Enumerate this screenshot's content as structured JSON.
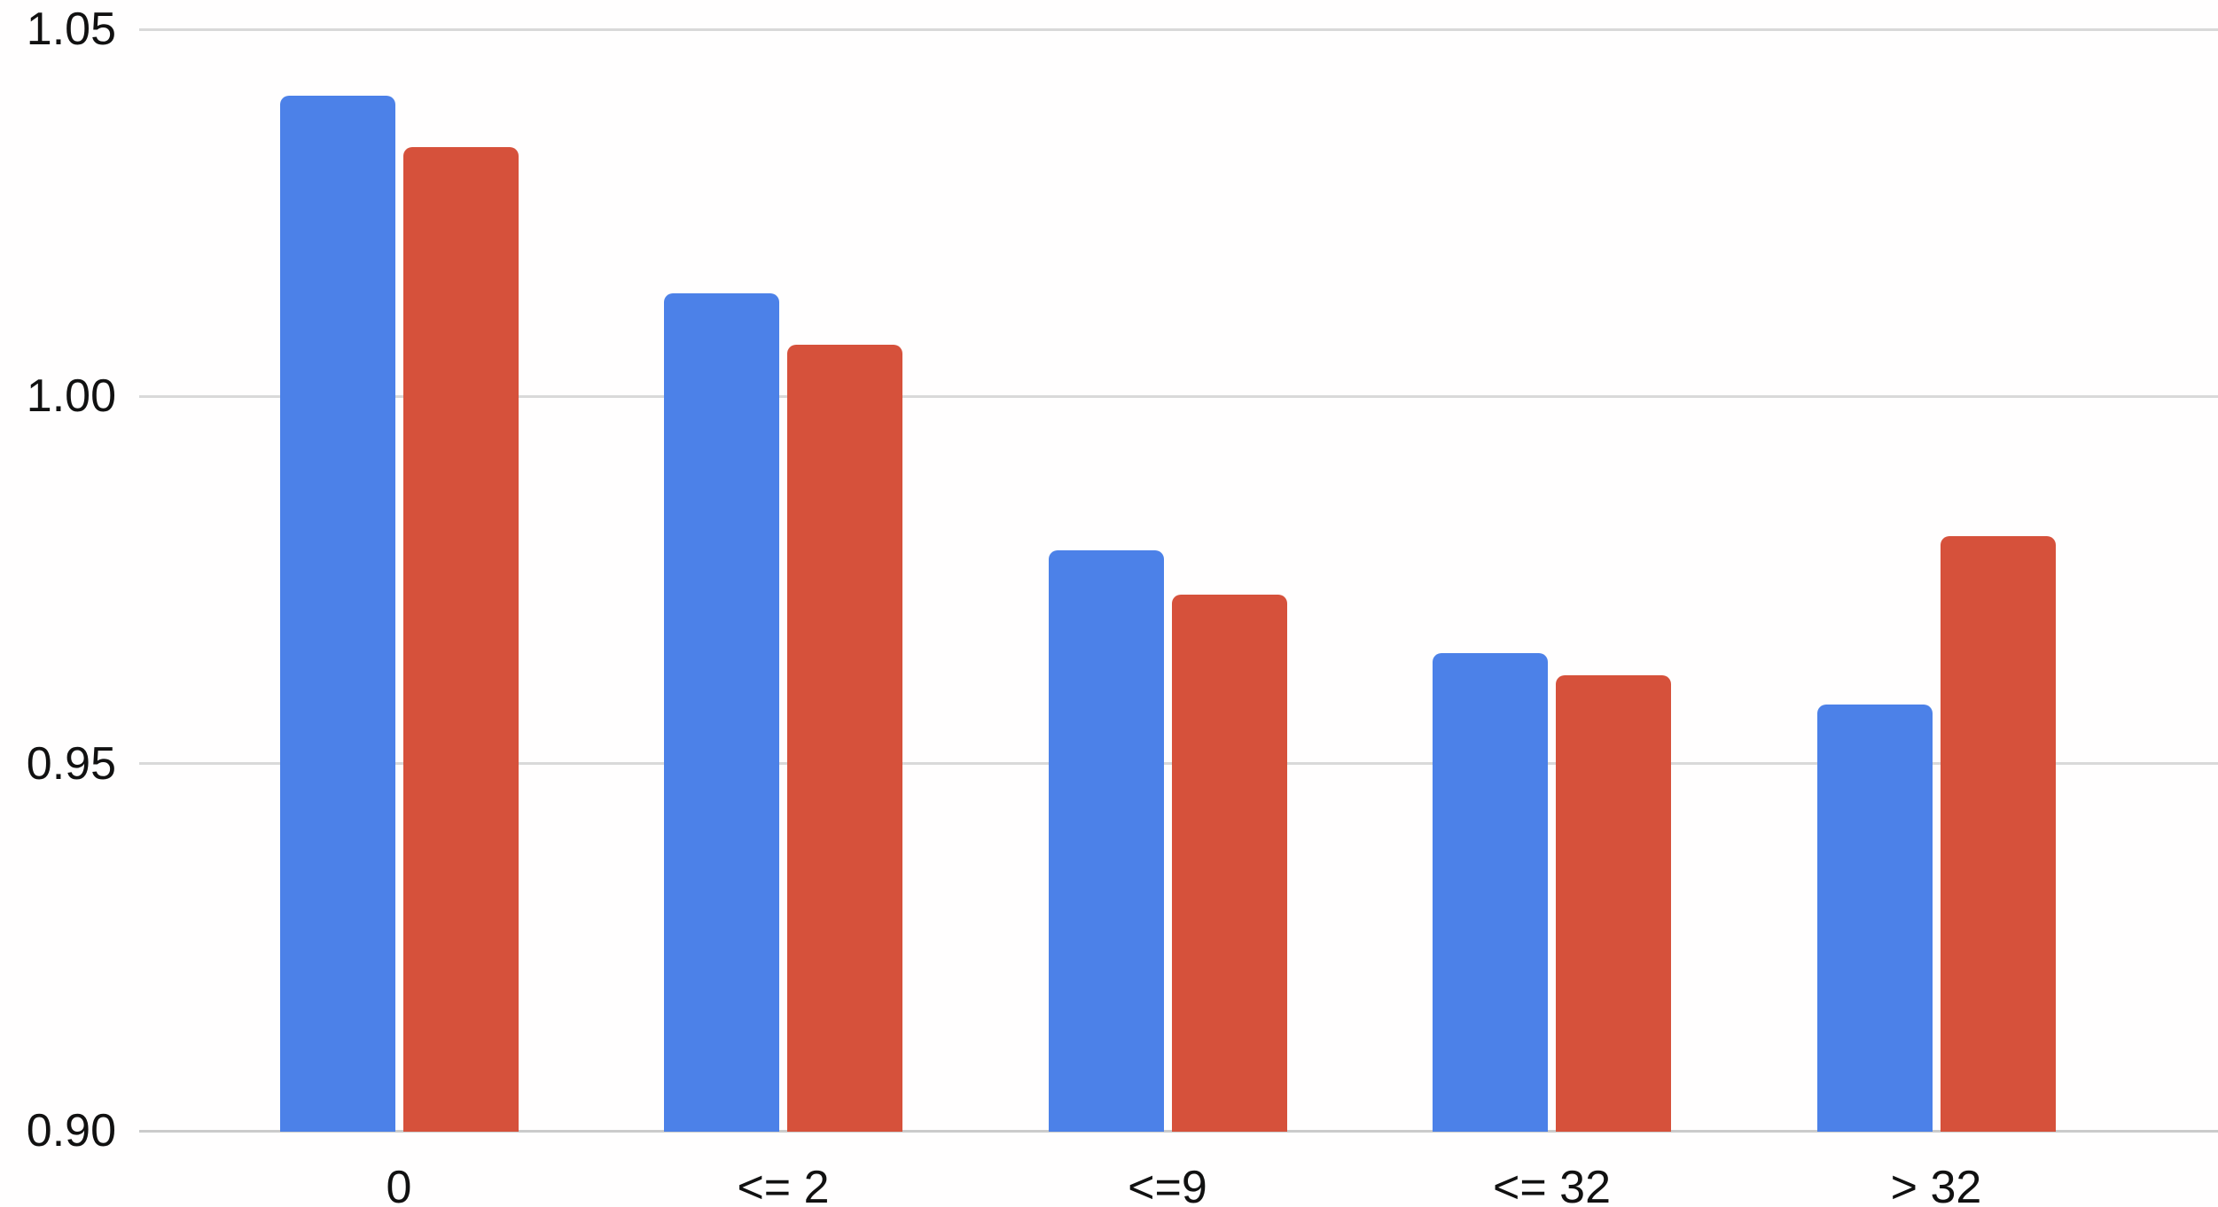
{
  "chart_data": {
    "type": "bar",
    "title": "",
    "xlabel": "",
    "ylabel": "",
    "categories": [
      "0",
      "<= 2",
      "<=9",
      "<= 32",
      "> 32"
    ],
    "series": [
      {
        "name": "series-blue",
        "color": "#4C81E8",
        "values": [
          1.041,
          1.014,
          0.979,
          0.965,
          0.958
        ]
      },
      {
        "name": "series-red",
        "color": "#D6513B",
        "values": [
          1.034,
          1.007,
          0.973,
          0.962,
          0.981
        ]
      }
    ],
    "ylim": [
      0.9,
      1.05
    ],
    "yticks": [
      1.05,
      1.0,
      0.95,
      0.9
    ],
    "ytick_decimals": 2,
    "grid": true,
    "legend_position": "none",
    "gridline_color": "#d9d9d9",
    "baseline_color": "#cbcbcb",
    "axis_text_color": "#111111",
    "background_color": "#ffffff"
  }
}
